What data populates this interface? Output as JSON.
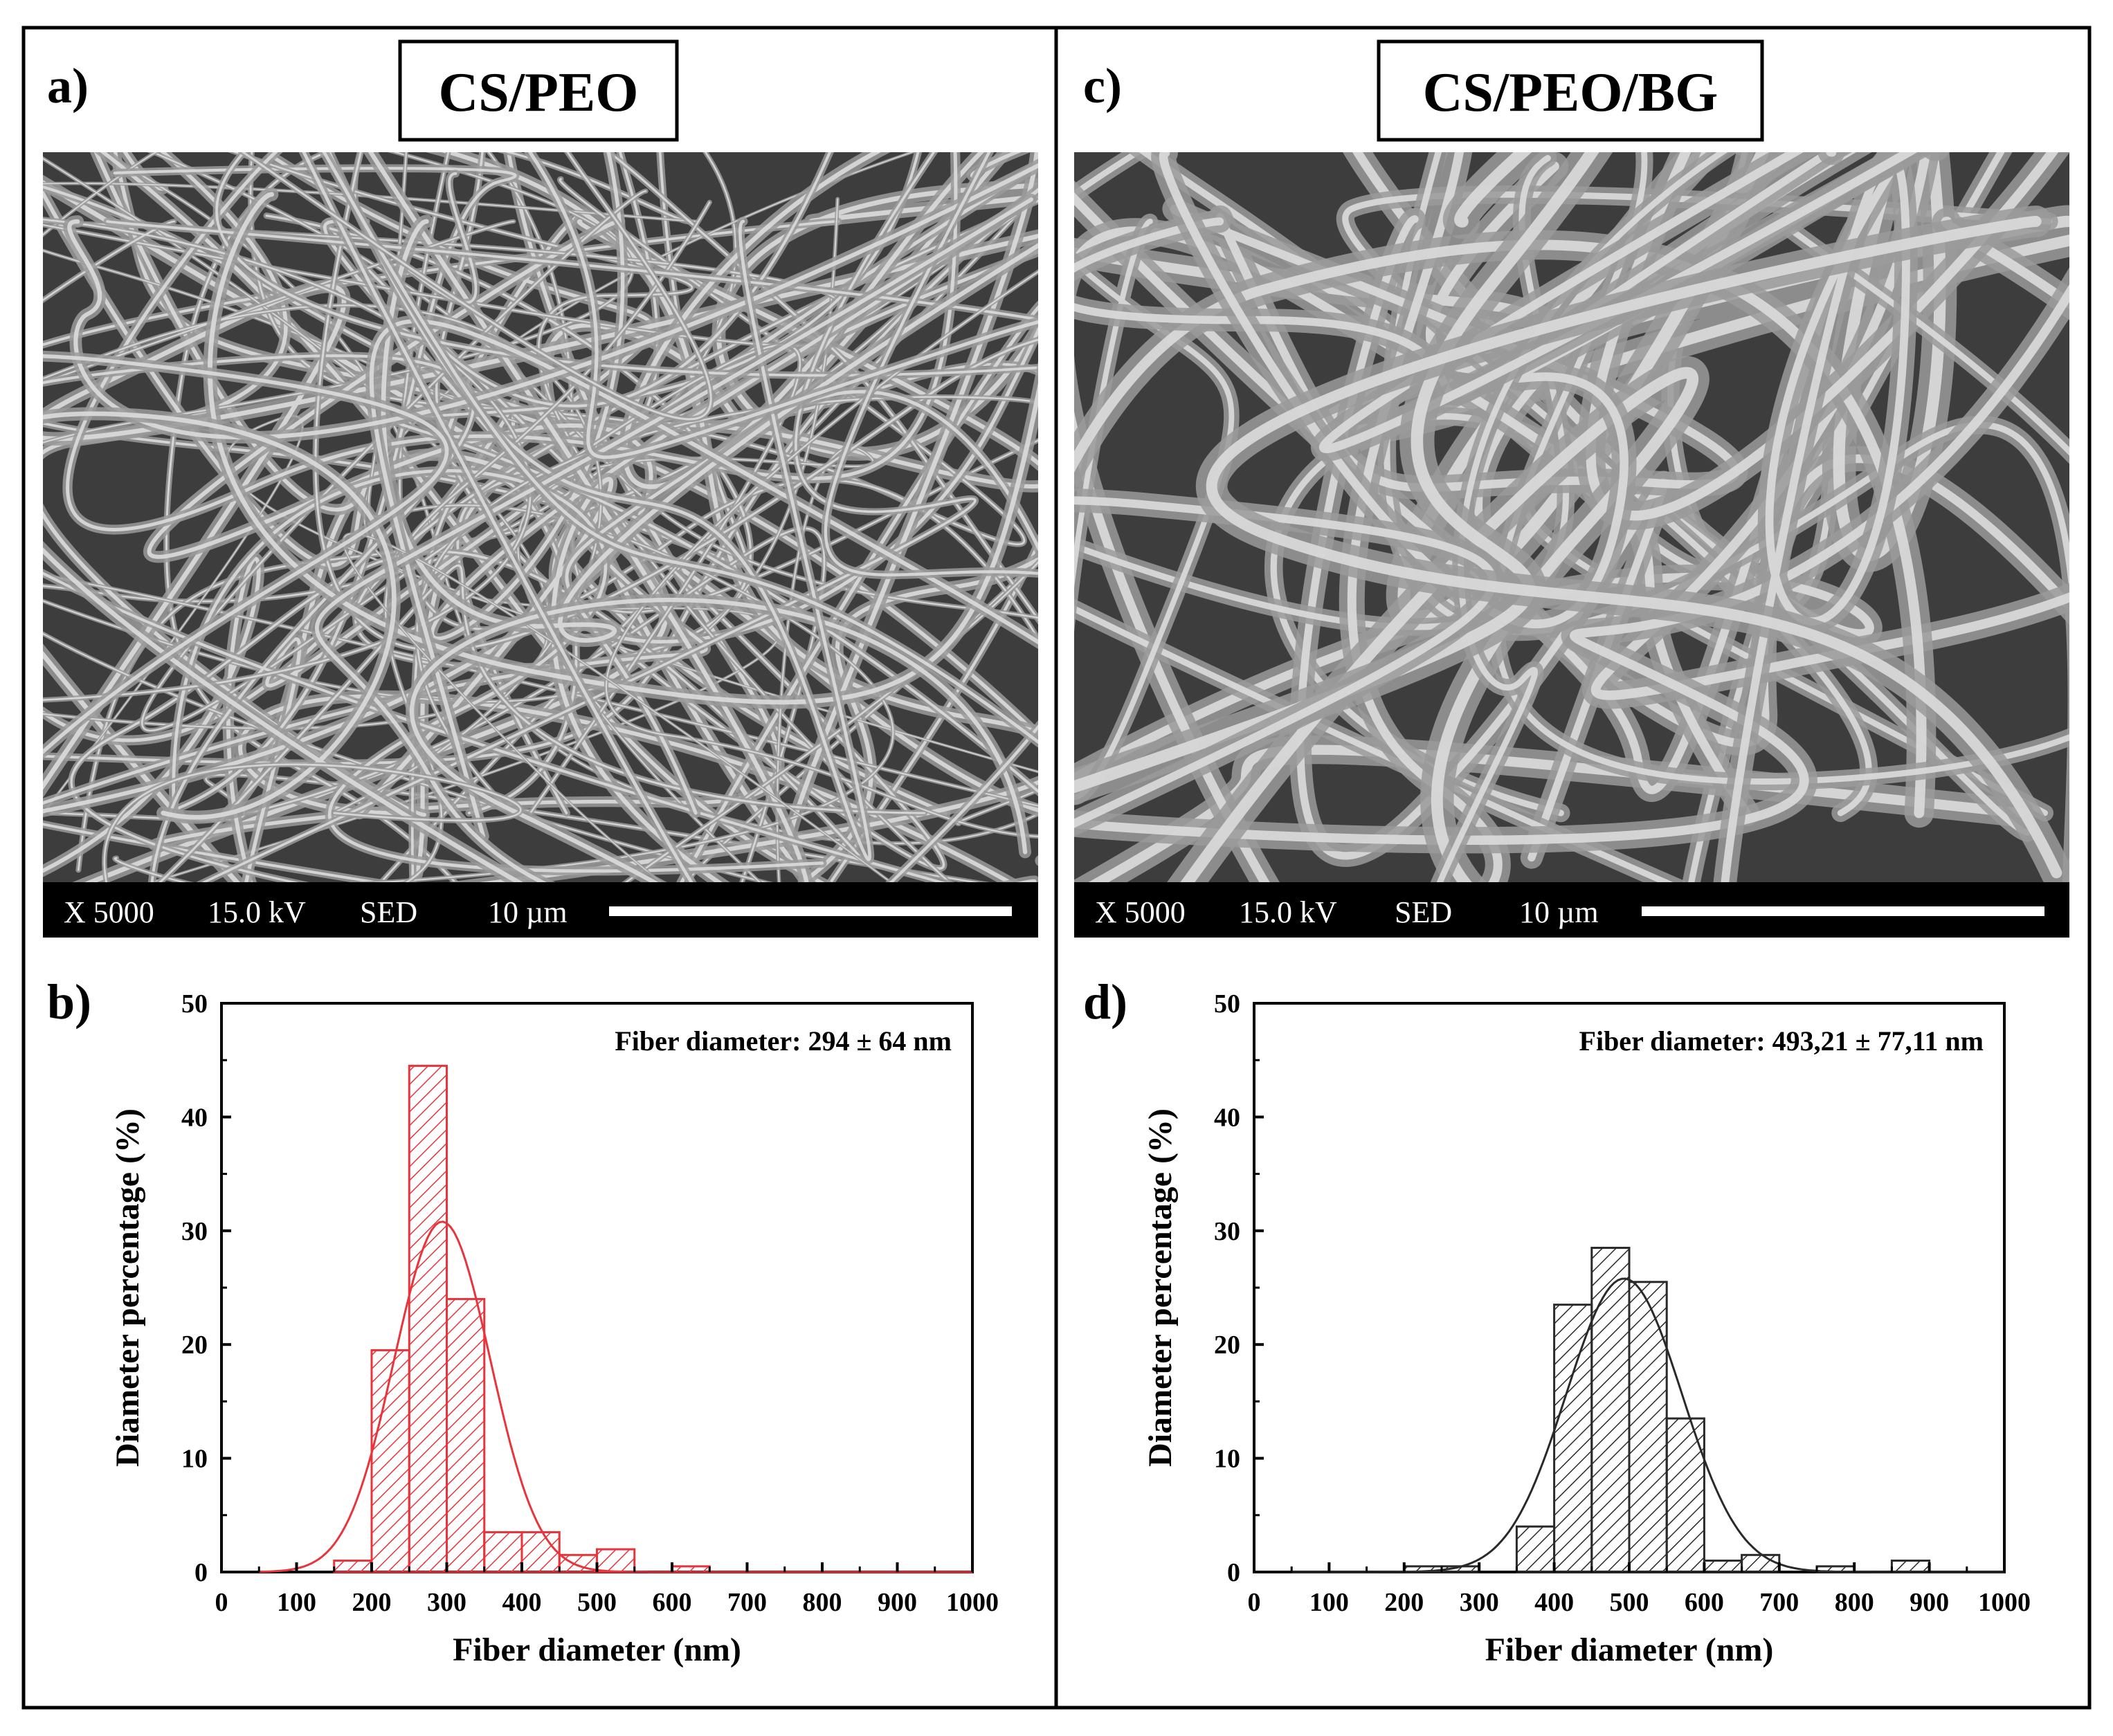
{
  "panels": [
    {
      "letter": "a)",
      "title": "CS/PEO"
    },
    {
      "letter": "c)",
      "title": "CS/PEO/BG"
    }
  ],
  "sem": [
    {
      "mag": "X 5000",
      "kv": "15.0 kV",
      "detector": "SED",
      "scale": "10 µm"
    },
    {
      "mag": "X 5000",
      "kv": "15.0 kV",
      "detector": "SED",
      "scale": "10 µm"
    }
  ],
  "colors": {
    "cs_peo": "#e8343a",
    "cs_peo_bg": "#2a2a2a",
    "sem_background": "#3d3d3d",
    "fiber": "#bdbdbd"
  },
  "chart_data": [
    {
      "type": "bar",
      "letter": "b)",
      "annotation": "Fiber diameter: 294 ± 64 nm",
      "xlabel": "Fiber diameter (nm)",
      "ylabel": "Diameter percentage (%)",
      "xlim": [
        0,
        1000
      ],
      "ylim": [
        0,
        50
      ],
      "xticks": [
        0,
        100,
        200,
        300,
        400,
        500,
        600,
        700,
        800,
        900,
        1000
      ],
      "yticks": [
        0,
        10,
        20,
        30,
        40,
        50
      ],
      "bin_width": 50,
      "bins": [
        {
          "x": 150,
          "value": 1
        },
        {
          "x": 200,
          "value": 19.5
        },
        {
          "x": 250,
          "value": 44.5
        },
        {
          "x": 300,
          "value": 24
        },
        {
          "x": 350,
          "value": 3.5
        },
        {
          "x": 400,
          "value": 3.5
        },
        {
          "x": 450,
          "value": 1.5
        },
        {
          "x": 500,
          "value": 2
        },
        {
          "x": 600,
          "value": 0.5
        }
      ],
      "fit": {
        "mean": 294,
        "sd": 64,
        "peak": 30.8
      },
      "color": "#e8343a",
      "grid": false
    },
    {
      "type": "bar",
      "letter": "d)",
      "annotation": "Fiber diameter: 493,21 ± 77,11 nm",
      "xlabel": "Fiber diameter (nm)",
      "ylabel": "Diameter percentage (%)",
      "xlim": [
        0,
        1000
      ],
      "ylim": [
        0,
        50
      ],
      "xticks": [
        0,
        100,
        200,
        300,
        400,
        500,
        600,
        700,
        800,
        900,
        1000
      ],
      "yticks": [
        0,
        10,
        20,
        30,
        40,
        50
      ],
      "bin_width": 50,
      "bins": [
        {
          "x": 200,
          "value": 0.5
        },
        {
          "x": 250,
          "value": 0.5
        },
        {
          "x": 350,
          "value": 4
        },
        {
          "x": 400,
          "value": 23.5
        },
        {
          "x": 450,
          "value": 28.5
        },
        {
          "x": 500,
          "value": 25.5
        },
        {
          "x": 550,
          "value": 13.5
        },
        {
          "x": 600,
          "value": 1
        },
        {
          "x": 650,
          "value": 1.5
        },
        {
          "x": 750,
          "value": 0.5
        },
        {
          "x": 850,
          "value": 1
        }
      ],
      "fit": {
        "mean": 493.21,
        "sd": 77.11,
        "peak": 25.8
      },
      "color": "#2a2a2a",
      "grid": false
    }
  ]
}
